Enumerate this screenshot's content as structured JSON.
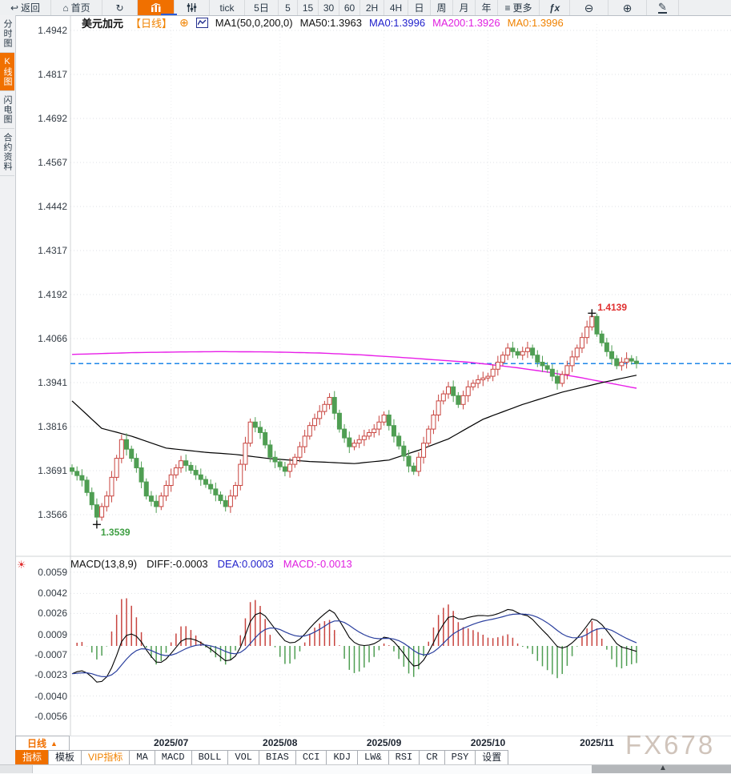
{
  "toolbar": {
    "items": [
      {
        "name": "back-button",
        "label": "返回",
        "icon": "back",
        "w": 64
      },
      {
        "name": "home-button",
        "label": "首页",
        "icon": "home",
        "w": 64
      },
      {
        "name": "refresh-button",
        "label": "",
        "icon": "refresh",
        "w": 44
      },
      {
        "name": "kline-chart-button",
        "label": "",
        "icon": "kline",
        "active": true,
        "w": 46
      },
      {
        "name": "indicator-settings-button",
        "label": "",
        "icon": "sliders",
        "w": 44
      },
      {
        "name": "tick-button",
        "label": "tick",
        "w": 44
      },
      {
        "name": "period-5d-button",
        "label": "5日",
        "w": 42
      },
      {
        "name": "period-5-button",
        "label": "5",
        "w": 24
      },
      {
        "name": "period-15-button",
        "label": "15",
        "w": 26
      },
      {
        "name": "period-30-button",
        "label": "30",
        "w": 26
      },
      {
        "name": "period-60-button",
        "label": "60",
        "w": 26
      },
      {
        "name": "period-2h-button",
        "label": "2H",
        "w": 30
      },
      {
        "name": "period-4h-button",
        "label": "4H",
        "w": 30
      },
      {
        "name": "period-day-button",
        "label": "日",
        "w": 28
      },
      {
        "name": "period-week-button",
        "label": "周",
        "w": 28
      },
      {
        "name": "period-month-button",
        "label": "月",
        "w": 28
      },
      {
        "name": "period-year-button",
        "label": "年",
        "w": 28
      },
      {
        "name": "more-button",
        "label": "更多",
        "icon": "menu",
        "w": 52
      },
      {
        "name": "fx-button",
        "label": "",
        "icon": "fx",
        "w": 38
      },
      {
        "name": "zoom-out-button",
        "label": "",
        "icon": "zoomout",
        "w": 48
      },
      {
        "name": "zoom-in-button",
        "label": "",
        "icon": "zoomin",
        "w": 48
      },
      {
        "name": "draw-button",
        "label": "",
        "icon": "pencil",
        "w": 40
      }
    ]
  },
  "sidebar": {
    "items": [
      {
        "name": "sidebar-item-time-chart",
        "label": "分时图",
        "active": false
      },
      {
        "name": "sidebar-item-kline",
        "label": "K线图",
        "active": true
      },
      {
        "name": "sidebar-item-lightning",
        "label": "闪电图",
        "active": false
      },
      {
        "name": "sidebar-item-contract-info",
        "label": "合约资料",
        "active": false
      }
    ]
  },
  "header": {
    "symbol": "美元加元",
    "period_tag": "【日线】",
    "plus_icon": "⊕",
    "ma_title": "MA1(50,0,200,0)",
    "ma50": "MA50:1.3963",
    "ma0_blue": "MA0:1.3996",
    "ma200": "MA200:1.3926",
    "ma0_orange": "MA0:1.3996"
  },
  "macd_header": {
    "title": "MACD(13,8,9)",
    "diff": "DIFF:-0.0003",
    "dea": "DEA:0.0003",
    "macd": "MACD:-0.0013"
  },
  "bottom": {
    "period_button": {
      "label": "日线",
      "arrow": "▲"
    },
    "tabs": [
      {
        "name": "tab-indicator",
        "label": "指标",
        "active": true
      },
      {
        "name": "tab-template",
        "label": "模板"
      },
      {
        "name": "tab-vip",
        "label": "VIP指标",
        "vip": true
      },
      {
        "name": "tab-ma",
        "label": "MA",
        "latin": true
      },
      {
        "name": "tab-macd",
        "label": "MACD",
        "latin": true
      },
      {
        "name": "tab-boll",
        "label": "BOLL",
        "latin": true
      },
      {
        "name": "tab-vol",
        "label": "VOL",
        "latin": true
      },
      {
        "name": "tab-bias",
        "label": "BIAS",
        "latin": true
      },
      {
        "name": "tab-cci",
        "label": "CCI",
        "latin": true
      },
      {
        "name": "tab-kdj",
        "label": "KDJ",
        "latin": true
      },
      {
        "name": "tab-lwr",
        "label": "LW&",
        "latin": true
      },
      {
        "name": "tab-rsi",
        "label": "RSI",
        "latin": true
      },
      {
        "name": "tab-cr",
        "label": "CR",
        "latin": true
      },
      {
        "name": "tab-psy",
        "label": "PSY",
        "latin": true
      },
      {
        "name": "tab-settings",
        "label": "设置"
      }
    ]
  },
  "watermark": "FX678",
  "colors": {
    "accent_orange": "#f07000",
    "up_red": "#c8443f",
    "down_green": "#4f9e53",
    "ma50_black": "#000000",
    "ma200_magenta": "#e81ee8",
    "price_line_blue": "#1d86e8",
    "dea_blue": "#2a3f9e",
    "grid": "#dfe2e5",
    "annotation_red": "#e03030",
    "annotation_green": "#3f9e43"
  },
  "chart_data": {
    "type": "candlestick",
    "title": "美元加元 日线",
    "y_ticks": [
      1.4942,
      1.4817,
      1.4692,
      1.4567,
      1.4442,
      1.4317,
      1.4192,
      1.4066,
      1.3941,
      1.3816,
      1.3691,
      1.3566
    ],
    "x_labels": [
      {
        "label": "2025/07",
        "index": 20
      },
      {
        "label": "2025/08",
        "index": 42
      },
      {
        "label": "2025/09",
        "index": 63
      },
      {
        "label": "2025/10",
        "index": 84
      },
      {
        "label": "2025/11",
        "index": 106
      }
    ],
    "current_price": 1.3996,
    "high_annotation": {
      "index": 105,
      "price": 1.4139,
      "label": "1.4139"
    },
    "low_annotation": {
      "index": 5,
      "price": 1.3539,
      "label": "1.3539"
    },
    "candles": [
      [
        1.37,
        1.371,
        1.368,
        1.369
      ],
      [
        1.369,
        1.3704,
        1.3664,
        1.3678
      ],
      [
        1.3678,
        1.3696,
        1.3647,
        1.3665
      ],
      [
        1.3665,
        1.3675,
        1.362,
        1.363
      ],
      [
        1.363,
        1.3644,
        1.3581,
        1.3595
      ],
      [
        1.3595,
        1.3613,
        1.3539,
        1.356
      ],
      [
        1.356,
        1.36,
        1.355,
        1.359
      ],
      [
        1.359,
        1.3634,
        1.3576,
        1.362
      ],
      [
        1.362,
        1.3691,
        1.3602,
        1.3673
      ],
      [
        1.3673,
        1.3737,
        1.3663,
        1.3727
      ],
      [
        1.3727,
        1.3794,
        1.3713,
        1.378
      ],
      [
        1.378,
        1.3798,
        1.3735,
        1.3753
      ],
      [
        1.3753,
        1.3763,
        1.3717,
        1.3727
      ],
      [
        1.3727,
        1.3741,
        1.3686,
        1.37
      ],
      [
        1.37,
        1.3718,
        1.3642,
        1.366
      ],
      [
        1.366,
        1.367,
        1.361,
        1.362
      ],
      [
        1.362,
        1.3634,
        1.3591,
        1.3605
      ],
      [
        1.3605,
        1.3623,
        1.3572,
        1.359
      ],
      [
        1.359,
        1.363,
        1.358,
        1.362
      ],
      [
        1.362,
        1.3664,
        1.3606,
        1.365
      ],
      [
        1.365,
        1.3698,
        1.3632,
        1.368
      ],
      [
        1.368,
        1.371,
        1.367,
        1.37
      ],
      [
        1.37,
        1.3734,
        1.3686,
        1.372
      ],
      [
        1.372,
        1.3738,
        1.3689,
        1.3707
      ],
      [
        1.3707,
        1.3717,
        1.3683,
        1.3693
      ],
      [
        1.3693,
        1.3707,
        1.3666,
        1.368
      ],
      [
        1.368,
        1.3698,
        1.3649,
        1.3667
      ],
      [
        1.3667,
        1.3677,
        1.3643,
        1.3653
      ],
      [
        1.3653,
        1.3667,
        1.3626,
        1.364
      ],
      [
        1.364,
        1.3658,
        1.3605,
        1.3623
      ],
      [
        1.3623,
        1.3633,
        1.3597,
        1.3607
      ],
      [
        1.3607,
        1.3621,
        1.3576,
        1.359
      ],
      [
        1.359,
        1.3638,
        1.3572,
        1.362
      ],
      [
        1.362,
        1.366,
        1.361,
        1.365
      ],
      [
        1.365,
        1.3724,
        1.3636,
        1.371
      ],
      [
        1.371,
        1.3788,
        1.3692,
        1.377
      ],
      [
        1.377,
        1.384,
        1.376,
        1.383
      ],
      [
        1.383,
        1.3844,
        1.3801,
        1.3815
      ],
      [
        1.3815,
        1.3833,
        1.3782,
        1.38
      ],
      [
        1.38,
        1.381,
        1.3755,
        1.3765
      ],
      [
        1.3765,
        1.3779,
        1.3716,
        1.373
      ],
      [
        1.373,
        1.3748,
        1.3699,
        1.3717
      ],
      [
        1.3717,
        1.3727,
        1.3693,
        1.3703
      ],
      [
        1.3703,
        1.3717,
        1.3676,
        1.369
      ],
      [
        1.369,
        1.3728,
        1.3672,
        1.371
      ],
      [
        1.371,
        1.374,
        1.37,
        1.373
      ],
      [
        1.373,
        1.3774,
        1.3716,
        1.376
      ],
      [
        1.376,
        1.3808,
        1.3742,
        1.379
      ],
      [
        1.379,
        1.383,
        1.378,
        1.382
      ],
      [
        1.382,
        1.3854,
        1.3806,
        1.384
      ],
      [
        1.384,
        1.3878,
        1.3822,
        1.386
      ],
      [
        1.386,
        1.389,
        1.385,
        1.388
      ],
      [
        1.388,
        1.3912,
        1.3866,
        1.39
      ],
      [
        1.39,
        1.3918,
        1.3837,
        1.3855
      ],
      [
        1.3855,
        1.3865,
        1.38,
        1.381
      ],
      [
        1.381,
        1.3824,
        1.3771,
        1.3785
      ],
      [
        1.3785,
        1.3803,
        1.3742,
        1.376
      ],
      [
        1.376,
        1.378,
        1.375,
        1.377
      ],
      [
        1.377,
        1.3794,
        1.3756,
        1.378
      ],
      [
        1.378,
        1.3808,
        1.3762,
        1.379
      ],
      [
        1.379,
        1.381,
        1.378,
        1.38
      ],
      [
        1.38,
        1.3824,
        1.3786,
        1.381
      ],
      [
        1.381,
        1.3848,
        1.3792,
        1.383
      ],
      [
        1.383,
        1.386,
        1.382,
        1.385
      ],
      [
        1.385,
        1.3864,
        1.3806,
        1.382
      ],
      [
        1.382,
        1.3838,
        1.3772,
        1.379
      ],
      [
        1.379,
        1.38,
        1.3752,
        1.3762
      ],
      [
        1.3762,
        1.3776,
        1.3719,
        1.3733
      ],
      [
        1.3733,
        1.3751,
        1.3687,
        1.3705
      ],
      [
        1.3705,
        1.3715,
        1.368,
        1.369
      ],
      [
        1.369,
        1.3744,
        1.3676,
        1.373
      ],
      [
        1.373,
        1.3788,
        1.3712,
        1.377
      ],
      [
        1.377,
        1.382,
        1.376,
        1.381
      ],
      [
        1.381,
        1.3864,
        1.3796,
        1.385
      ],
      [
        1.385,
        1.3908,
        1.3832,
        1.389
      ],
      [
        1.389,
        1.392,
        1.388,
        1.391
      ],
      [
        1.391,
        1.3944,
        1.3896,
        1.393
      ],
      [
        1.393,
        1.3948,
        1.3887,
        1.3905
      ],
      [
        1.3905,
        1.3915,
        1.387,
        1.388
      ],
      [
        1.388,
        1.3919,
        1.3866,
        1.3905
      ],
      [
        1.3905,
        1.3948,
        1.3887,
        1.393
      ],
      [
        1.393,
        1.395,
        1.392,
        1.394
      ],
      [
        1.394,
        1.3964,
        1.3926,
        1.395
      ],
      [
        1.395,
        1.3973,
        1.3932,
        1.3955
      ],
      [
        1.3955,
        1.397,
        1.3945,
        1.396
      ],
      [
        1.396,
        1.3994,
        1.3946,
        1.398
      ],
      [
        1.398,
        1.4018,
        1.3962,
        1.4
      ],
      [
        1.4,
        1.403,
        1.399,
        1.402
      ],
      [
        1.402,
        1.4054,
        1.4006,
        1.404
      ],
      [
        1.404,
        1.4058,
        1.4012,
        1.403
      ],
      [
        1.403,
        1.404,
        1.401,
        1.402
      ],
      [
        1.402,
        1.4044,
        1.4006,
        1.403
      ],
      [
        1.403,
        1.4058,
        1.4012,
        1.404
      ],
      [
        1.404,
        1.405,
        1.401,
        1.402
      ],
      [
        1.402,
        1.4034,
        1.3986,
        1.4
      ],
      [
        1.4,
        1.4018,
        1.3972,
        1.399
      ],
      [
        1.399,
        1.4,
        1.397,
        1.398
      ],
      [
        1.398,
        1.3994,
        1.3946,
        1.396
      ],
      [
        1.396,
        1.3978,
        1.3922,
        1.394
      ],
      [
        1.394,
        1.3975,
        1.393,
        1.3965
      ],
      [
        1.3965,
        1.4004,
        1.3951,
        1.399
      ],
      [
        1.399,
        1.4033,
        1.3972,
        1.4015
      ],
      [
        1.4015,
        1.405,
        1.4005,
        1.404
      ],
      [
        1.404,
        1.4084,
        1.4026,
        1.407
      ],
      [
        1.407,
        1.4118,
        1.4052,
        1.41
      ],
      [
        1.41,
        1.4139,
        1.409,
        1.413
      ],
      [
        1.413,
        1.4138,
        1.4072,
        1.408
      ],
      [
        1.408,
        1.409,
        1.4045,
        1.4055
      ],
      [
        1.4055,
        1.4069,
        1.4016,
        1.403
      ],
      [
        1.403,
        1.4048,
        1.3992,
        1.401
      ],
      [
        1.401,
        1.402,
        1.398,
        1.399
      ],
      [
        1.399,
        1.4014,
        1.3976,
        1.4
      ],
      [
        1.4,
        1.4028,
        1.3982,
        1.401
      ],
      [
        1.401,
        1.402,
        1.3993,
        1.4003
      ],
      [
        1.4003,
        1.4017,
        1.3982,
        1.3996
      ]
    ],
    "ma50_points": [
      [
        0,
        1.389
      ],
      [
        6,
        1.3812
      ],
      [
        12,
        1.379
      ],
      [
        19,
        1.3756
      ],
      [
        27,
        1.3744
      ],
      [
        33,
        1.3738
      ],
      [
        40,
        1.3726
      ],
      [
        48,
        1.3718
      ],
      [
        57,
        1.3712
      ],
      [
        64,
        1.3722
      ],
      [
        70,
        1.375
      ],
      [
        76,
        1.3782
      ],
      [
        83,
        1.3838
      ],
      [
        91,
        1.388
      ],
      [
        99,
        1.3915
      ],
      [
        107,
        1.3942
      ],
      [
        114,
        1.3963
      ]
    ],
    "ma200_points": [
      [
        0,
        1.4022
      ],
      [
        12,
        1.4027
      ],
      [
        22,
        1.4029
      ],
      [
        30,
        1.403
      ],
      [
        40,
        1.4029
      ],
      [
        50,
        1.4026
      ],
      [
        58,
        1.4021
      ],
      [
        66,
        1.4014
      ],
      [
        74,
        1.4006
      ],
      [
        80,
        1.4
      ],
      [
        84,
        1.3994
      ],
      [
        90,
        1.3984
      ],
      [
        96,
        1.3972
      ],
      [
        102,
        1.3958
      ],
      [
        108,
        1.3942
      ],
      [
        114,
        1.3926
      ]
    ],
    "macd": {
      "params": "13,8,9",
      "y_ticks": [
        0.0059,
        0.0042,
        0.0026,
        0.0009,
        -0.0007,
        -0.0023,
        -0.004,
        -0.0056
      ],
      "diff_last": -0.0003,
      "dea_last": 0.0003,
      "hist_last": -0.0013
    }
  }
}
